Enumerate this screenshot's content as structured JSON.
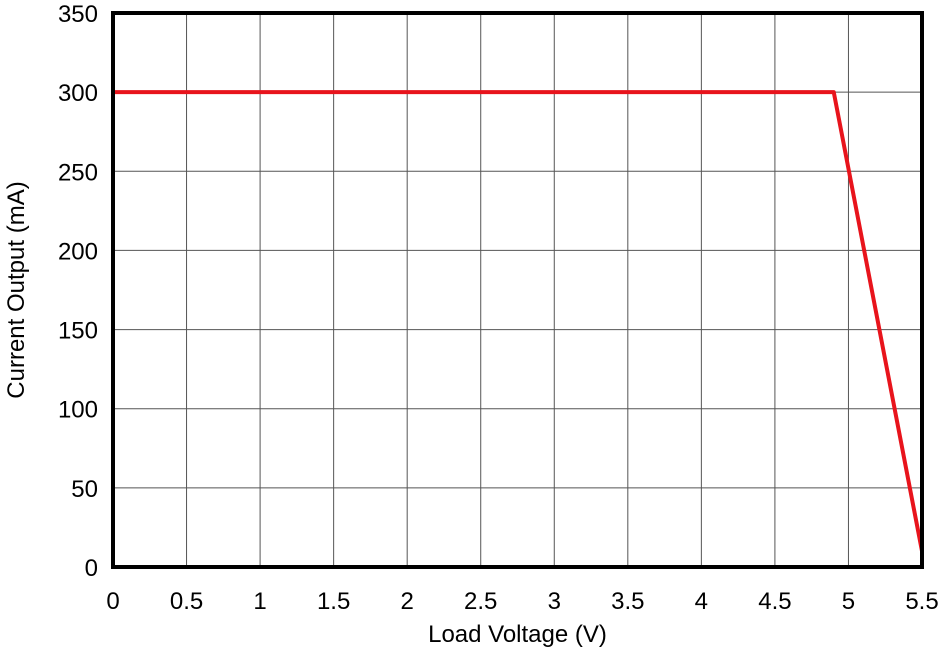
{
  "chart_data": {
    "type": "line",
    "title": "",
    "xlabel": "Load Voltage (V)",
    "ylabel": "Current Output (mA)",
    "xlim": [
      0,
      5.5
    ],
    "ylim": [
      0,
      350
    ],
    "x_ticks": [
      0,
      0.5,
      1,
      1.5,
      2,
      2.5,
      3,
      3.5,
      4,
      4.5,
      5,
      5.5
    ],
    "x_tick_labels": [
      "0",
      "0.5",
      "1",
      "1.5",
      "2",
      "2.5",
      "3",
      "3.5",
      "4",
      "4.5",
      "5",
      "5.5"
    ],
    "y_ticks": [
      0,
      50,
      100,
      150,
      200,
      250,
      300,
      350
    ],
    "y_tick_labels": [
      "0",
      "50",
      "100",
      "150",
      "200",
      "250",
      "300",
      "350"
    ],
    "grid": true,
    "legend": "none",
    "series": [
      {
        "color": "#e8141c",
        "x": [
          0,
          4.9,
          5.5
        ],
        "y": [
          300,
          300,
          10
        ]
      }
    ]
  }
}
